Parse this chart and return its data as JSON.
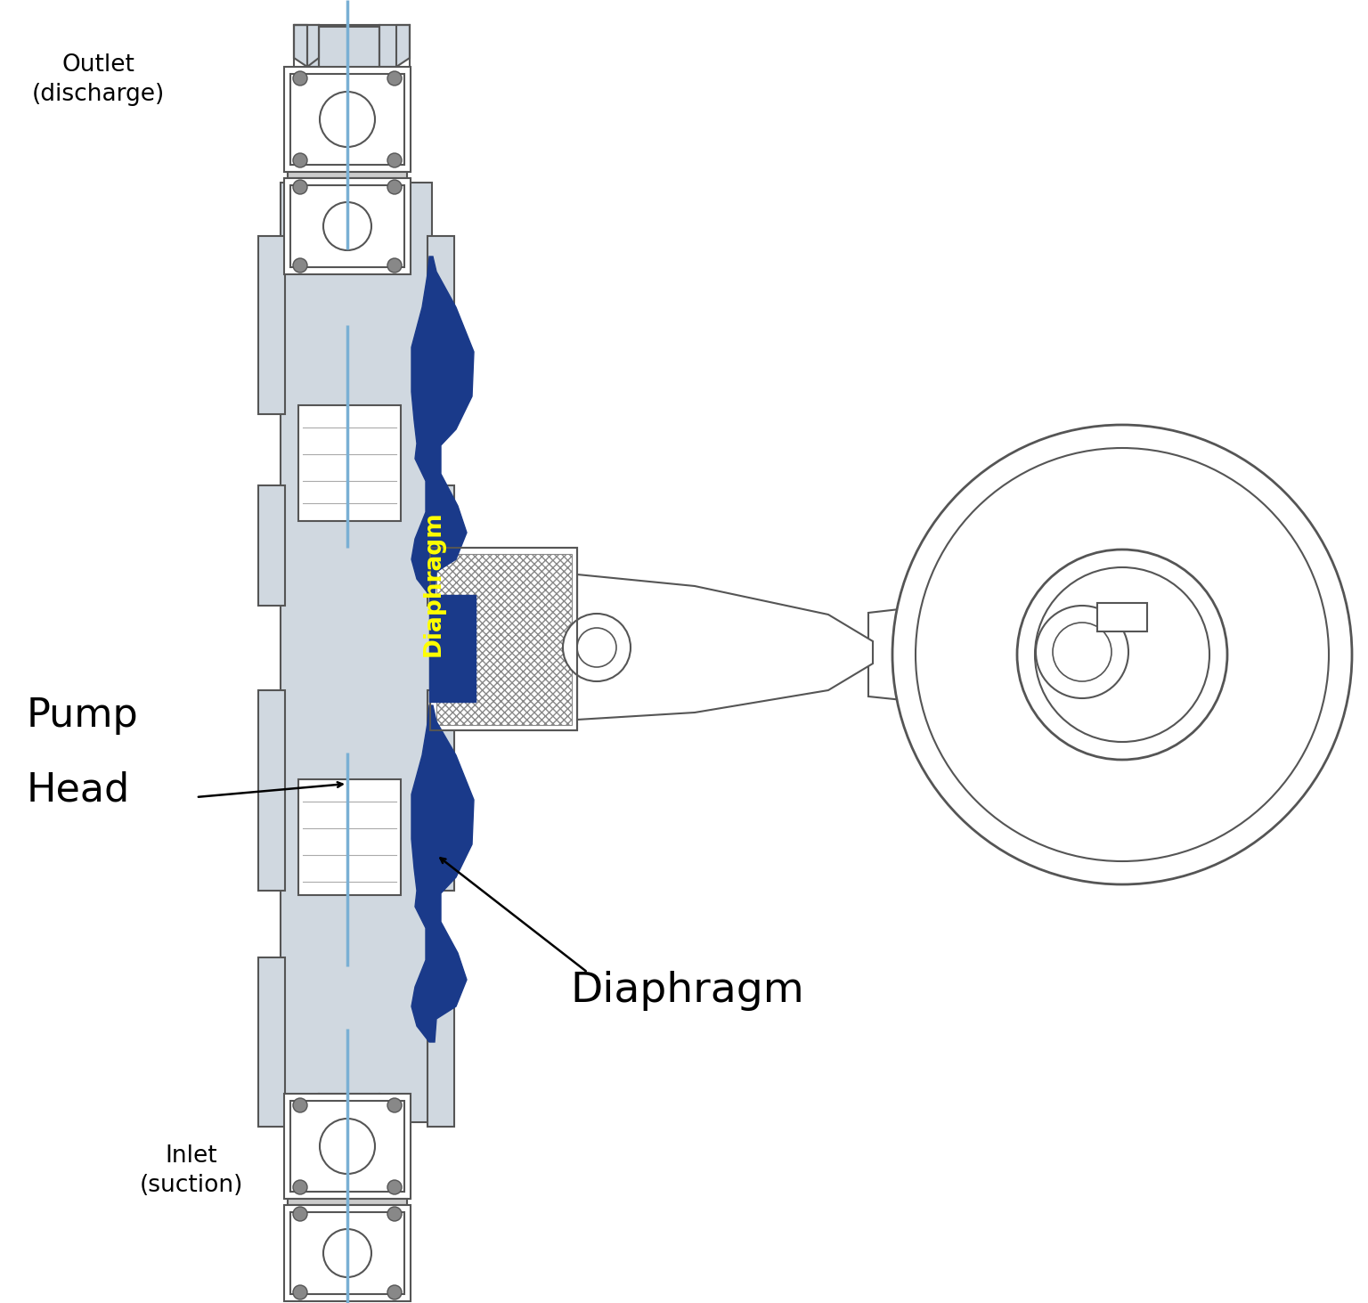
{
  "bg_color": "#ffffff",
  "pump_body_color": "#d0d8e0",
  "pump_body_edge": "#555555",
  "diaphragm_color": "#1a3a8a",
  "blue_line_color": "#7ab0d4",
  "text_color": "#000000",
  "yellow_text_color": "#ffff00",
  "dark_blue": "#1a3a8a",
  "labels": {
    "outlet": "Outlet\n(discharge)",
    "inlet": "Inlet\n(suction)",
    "pump_head_line1": "Pump",
    "pump_head_line2": "Head",
    "diaphragm_label": "Diaphragm",
    "diaphragm_on_part": "Diaphragm"
  },
  "figsize": [
    15.36,
    14.63
  ],
  "dpi": 100
}
